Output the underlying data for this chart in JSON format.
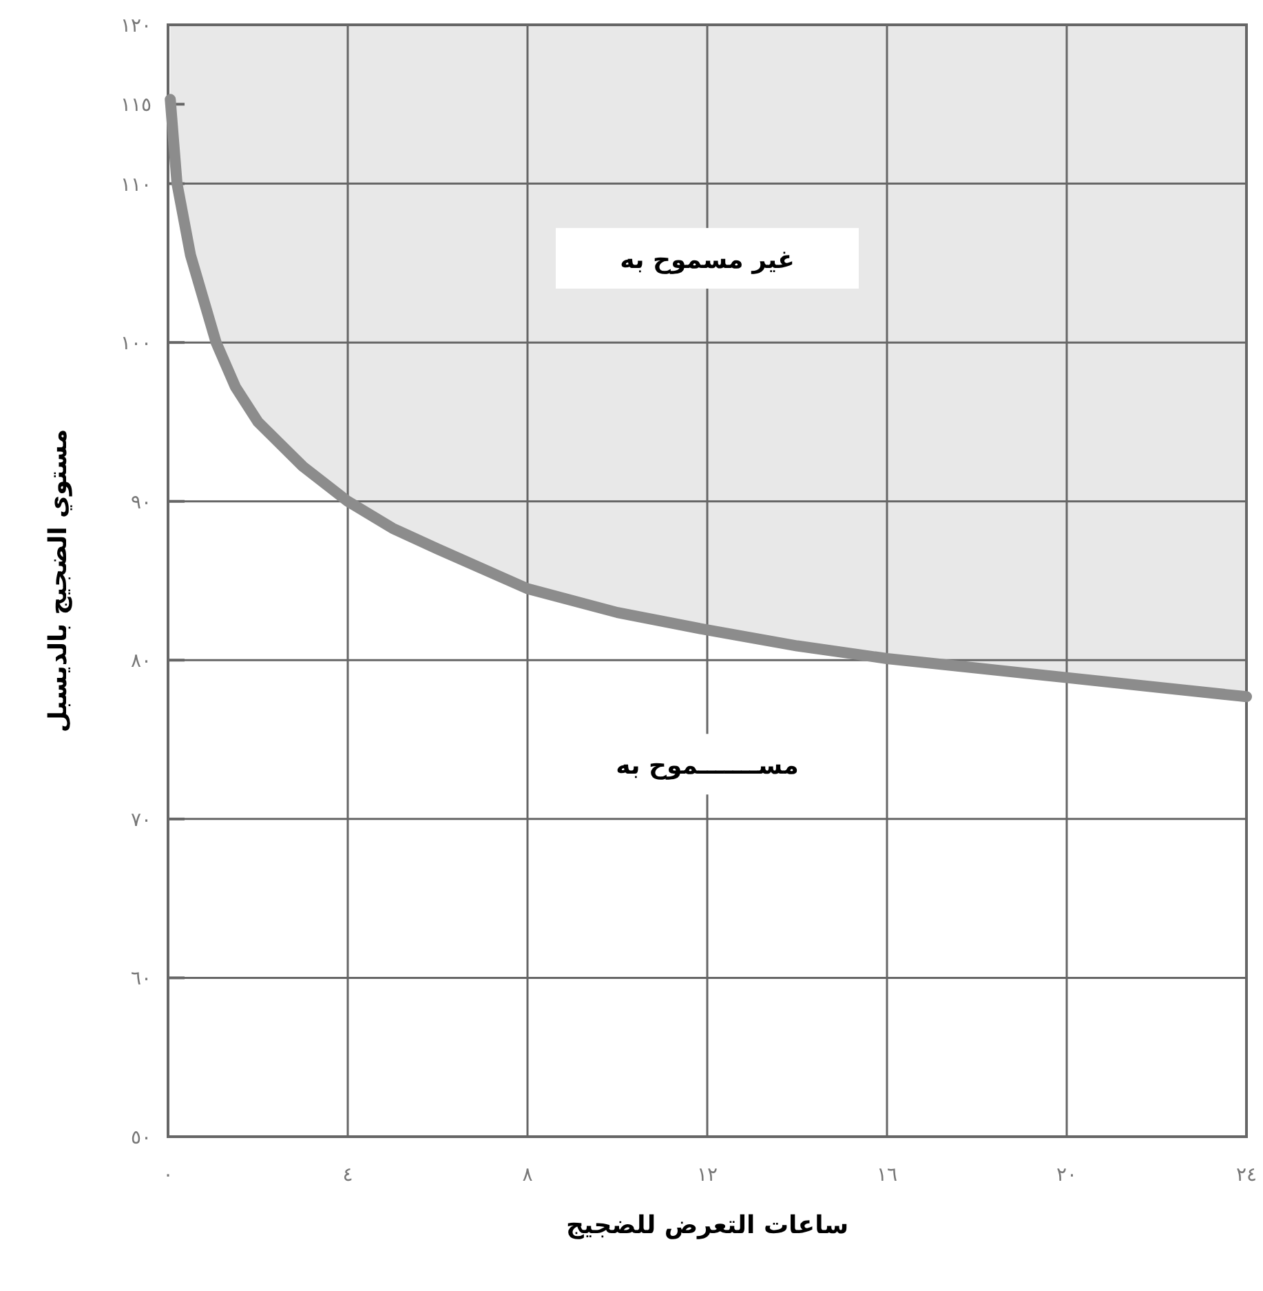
{
  "chart_data": {
    "type": "line",
    "xlabel": "ساعات التعرض للضجيج",
    "ylabel": "مستوي الضجيج بالديسبل",
    "annotations": [
      "غير مسموح به",
      "مســـــــموح به"
    ],
    "x": [
      0.05,
      0.2,
      0.5,
      1.07,
      1.5,
      2.0,
      3.0,
      4.0,
      5.0,
      6.0,
      8.0,
      10.0,
      12.0,
      14.0,
      16.0,
      18.0,
      20.0,
      22.0,
      24.0
    ],
    "series": [
      {
        "color": "#8c8c8c",
        "values": [
          115.3,
          110,
          105.5,
          100,
          97.2,
          95,
          92.2,
          90,
          88.3,
          87,
          84.5,
          83,
          81.9,
          80.9,
          80.1,
          79.5,
          78.9,
          78.3,
          77.7
        ],
        "lower": [
          115.3,
          110,
          105.5,
          100,
          97.2,
          95,
          92.2,
          90,
          88.3,
          87,
          84.5,
          83,
          81.9,
          80.9,
          80.1,
          79.5,
          78.9,
          78.3,
          77.7
        ],
        "upper": [
          120,
          120,
          120,
          120,
          120,
          120,
          120,
          120,
          120,
          120,
          120,
          120,
          120,
          120,
          120,
          120,
          120,
          120,
          120
        ]
      }
    ],
    "xlim": [
      0,
      24
    ],
    "ylim": [
      50,
      120
    ],
    "xticks": [
      {
        "value": 0,
        "label": "٠"
      },
      {
        "value": 4,
        "label": "٤"
      },
      {
        "value": 8,
        "label": "٨"
      },
      {
        "value": 12,
        "label": "١٢"
      },
      {
        "value": 16,
        "label": "١٦"
      },
      {
        "value": 20,
        "label": "٢٠"
      },
      {
        "value": 24,
        "label": "٢٤"
      }
    ],
    "yticks": [
      {
        "value": 50,
        "label": "٥٠"
      },
      {
        "value": 60,
        "label": "٦٠"
      },
      {
        "value": 70,
        "label": "٧٠"
      },
      {
        "value": 80,
        "label": "٨٠"
      },
      {
        "value": 90,
        "label": "٩٠"
      },
      {
        "value": 100,
        "label": "١٠٠"
      },
      {
        "value": 110,
        "label": "١١٠"
      },
      {
        "value": 115,
        "label": "١١٥"
      },
      {
        "value": 120,
        "label": "١٢٠"
      }
    ],
    "grid": true,
    "marker": "none",
    "line_style": "solid"
  }
}
